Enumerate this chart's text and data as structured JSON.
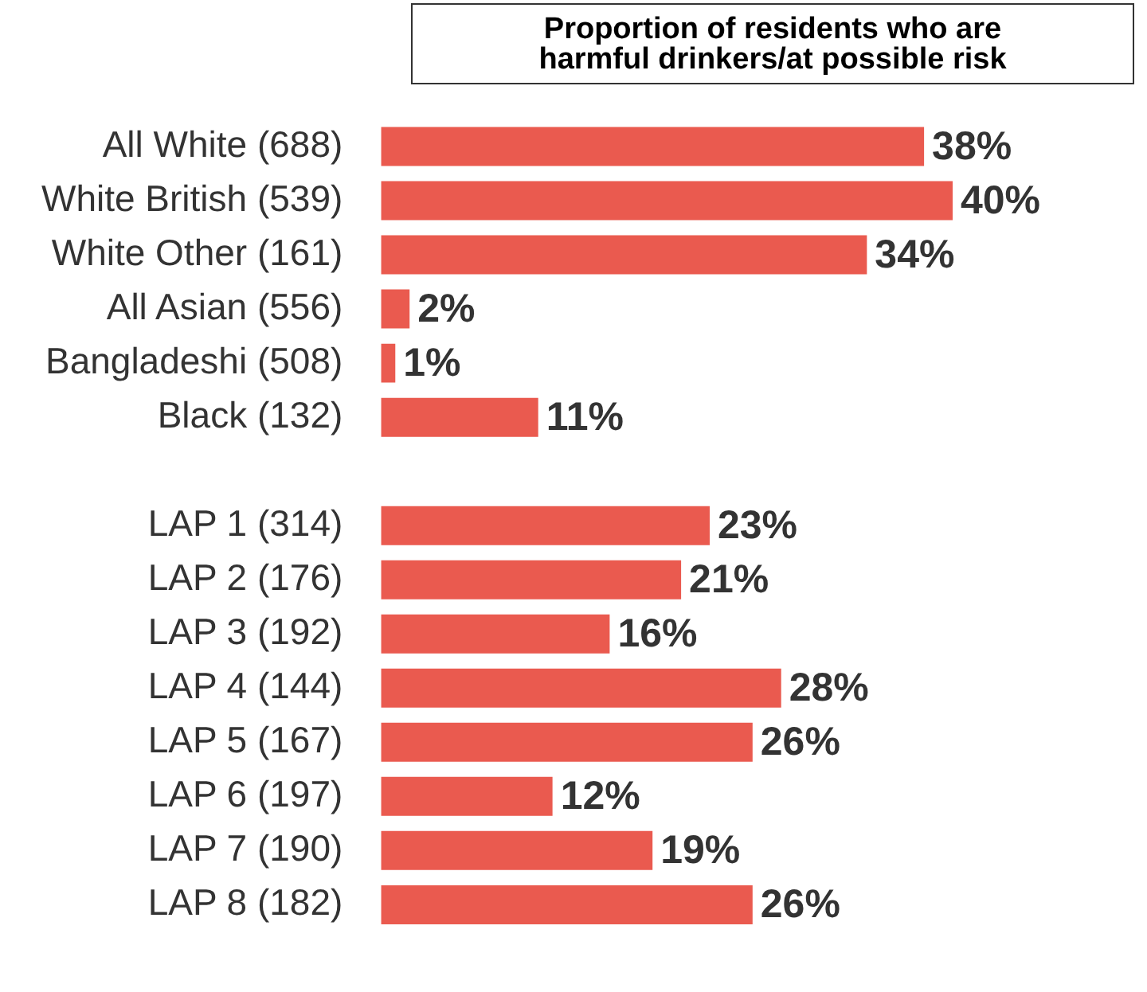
{
  "chart_data": {
    "type": "bar",
    "orientation": "horizontal",
    "title": "Proportion of residents who are\nharmful drinkers/at possible risk",
    "categories": [
      "All White (688)",
      "White British (539)",
      "White Other (161)",
      "All Asian (556)",
      "Bangladeshi (508)",
      "Black (132)",
      null,
      "LAP 1 (314)",
      "LAP 2 (176)",
      "LAP 3 (192)",
      "LAP 4 (144)",
      "LAP 5 (167)",
      "LAP 6 (197)",
      "LAP 7 (190)",
      "LAP 8 (182)"
    ],
    "values": [
      38,
      40,
      34,
      2,
      1,
      11,
      null,
      23,
      21,
      16,
      28,
      26,
      12,
      19,
      26
    ],
    "value_labels": [
      "38%",
      "40%",
      "34%",
      "2%",
      "1%",
      "11%",
      null,
      "23%",
      "21%",
      "16%",
      "28%",
      "26%",
      "12%",
      "19%",
      "26%"
    ],
    "color": "#ea5a4f",
    "grid": false,
    "legend": false
  }
}
